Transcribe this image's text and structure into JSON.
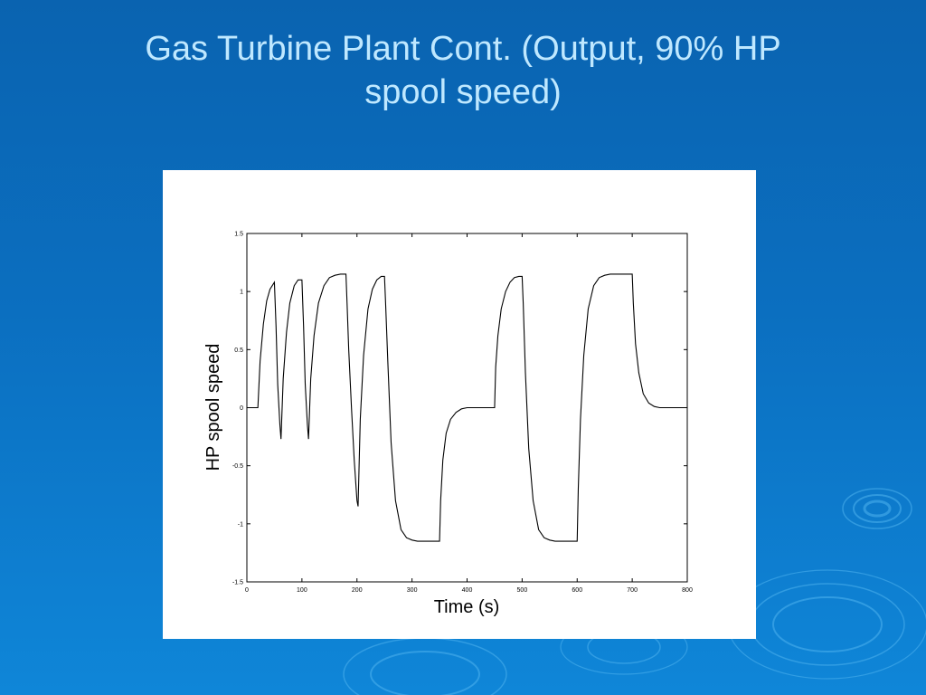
{
  "slide": {
    "title_line1": "Gas Turbine Plant Cont. (Output, 90% HP",
    "title_line2": "spool speed)"
  },
  "colors": {
    "background_top": "#0a63b0",
    "background_bottom": "#0f86d8",
    "title": "#bfe8ff",
    "panel": "#ffffff",
    "line": "#000000"
  },
  "chart_data": {
    "type": "line",
    "title": "",
    "xlabel": "Time (s)",
    "ylabel": "HP spool speed",
    "xlim": [
      0,
      800
    ],
    "ylim": [
      -1.5,
      1.5
    ],
    "xticks": [
      0,
      100,
      200,
      300,
      400,
      500,
      600,
      700,
      800
    ],
    "xtick_labels": [
      "0",
      "100",
      "200",
      "300",
      "400",
      "500",
      "600",
      "700",
      "800"
    ],
    "yticks": [
      -1.5,
      -1,
      -0.5,
      0,
      0.5,
      1,
      1.5
    ],
    "ytick_labels": [
      "-1.5",
      "-1",
      "-0.5",
      "0",
      "0.5",
      "1",
      "1.5"
    ],
    "grid": false,
    "series": [
      {
        "x": [
          0,
          20,
          24,
          30,
          36,
          42,
          50,
          53,
          56,
          60,
          62,
          66,
          72,
          78,
          86,
          93,
          100,
          103,
          106,
          110,
          112,
          116,
          122,
          130,
          140,
          150,
          160,
          170,
          180,
          182,
          185,
          190,
          195,
          200,
          202,
          206,
          212,
          220,
          228,
          236,
          244,
          250,
          252,
          256,
          262,
          270,
          280,
          290,
          300,
          310,
          320,
          330,
          340,
          350,
          352,
          356,
          362,
          370,
          380,
          390,
          400,
          410,
          420,
          430,
          440,
          450,
          452,
          456,
          462,
          470,
          478,
          486,
          494,
          500,
          502,
          506,
          512,
          520,
          530,
          540,
          550,
          560,
          570,
          580,
          590,
          600,
          602,
          606,
          612,
          620,
          630,
          640,
          650,
          660,
          670,
          680,
          690,
          700,
          702,
          706,
          712,
          720,
          730,
          740,
          750,
          760,
          770,
          780,
          790,
          800
        ],
        "y": [
          0,
          0,
          0.4,
          0.72,
          0.92,
          1.02,
          1.08,
          0.7,
          0.2,
          -0.15,
          -0.27,
          0.25,
          0.65,
          0.9,
          1.05,
          1.1,
          1.1,
          0.7,
          0.2,
          -0.15,
          -0.27,
          0.25,
          0.62,
          0.9,
          1.05,
          1.12,
          1.14,
          1.15,
          1.15,
          0.9,
          0.5,
          0.0,
          -0.45,
          -0.8,
          -0.85,
          -0.1,
          0.45,
          0.85,
          1.02,
          1.1,
          1.13,
          1.13,
          0.9,
          0.4,
          -0.3,
          -0.8,
          -1.05,
          -1.12,
          -1.14,
          -1.15,
          -1.15,
          -1.15,
          -1.15,
          -1.15,
          -0.8,
          -0.45,
          -0.22,
          -0.1,
          -0.04,
          -0.01,
          0,
          0,
          0,
          0,
          0,
          0,
          0.35,
          0.62,
          0.85,
          1.0,
          1.08,
          1.12,
          1.13,
          1.13,
          0.9,
          0.3,
          -0.35,
          -0.8,
          -1.05,
          -1.12,
          -1.14,
          -1.15,
          -1.15,
          -1.15,
          -1.15,
          -1.15,
          -0.7,
          -0.1,
          0.45,
          0.85,
          1.05,
          1.12,
          1.14,
          1.15,
          1.15,
          1.15,
          1.15,
          1.15,
          0.9,
          0.55,
          0.3,
          0.12,
          0.04,
          0.01,
          0,
          0,
          0,
          0,
          0,
          0
        ]
      }
    ]
  }
}
